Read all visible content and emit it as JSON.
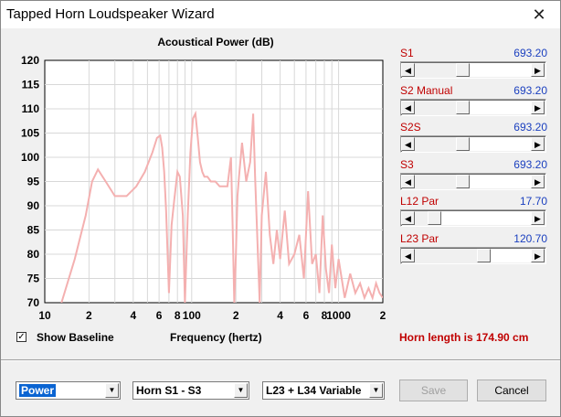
{
  "window": {
    "title": "Tapped Horn Loudspeaker Wizard",
    "close_glyph": "✕"
  },
  "chart_data": {
    "type": "line",
    "title": "Acoustical Power (dB)",
    "xlabel": "Frequency (hertz)",
    "ylabel": "",
    "x_scale": "log",
    "xlim": [
      10,
      2000
    ],
    "ylim": [
      70,
      120
    ],
    "y_ticks": [
      "120",
      "115",
      "110",
      "105",
      "100",
      "95",
      "90",
      "85",
      "80",
      "75",
      "70"
    ],
    "x_ticks": [
      {
        "value": 10,
        "label": "10"
      },
      {
        "value": 20,
        "label": "2"
      },
      {
        "value": 40,
        "label": "4"
      },
      {
        "value": 60,
        "label": "6"
      },
      {
        "value": 80,
        "label": "8"
      },
      {
        "value": 100,
        "label": "100"
      },
      {
        "value": 200,
        "label": "2"
      },
      {
        "value": 400,
        "label": "4"
      },
      {
        "value": 600,
        "label": "6"
      },
      {
        "value": 800,
        "label": "8"
      },
      {
        "value": 1000,
        "label": "1000"
      },
      {
        "value": 2000,
        "label": "2"
      }
    ],
    "grid": true,
    "series": [
      {
        "color": "#f4b0b0",
        "x": [
          13,
          16,
          19,
          21,
          23,
          26,
          30,
          36,
          42,
          48,
          54,
          58,
          61,
          63,
          65,
          67,
          70,
          73,
          76,
          78,
          80,
          83,
          87,
          90,
          94,
          98,
          102,
          106,
          110,
          114,
          118,
          122,
          128,
          135,
          145,
          155,
          165,
          175,
          185,
          190,
          195,
          200,
          205,
          210,
          220,
          235,
          250,
          262,
          270,
          280,
          290,
          300,
          320,
          340,
          360,
          380,
          400,
          430,
          460,
          500,
          540,
          580,
          620,
          660,
          700,
          740,
          780,
          820,
          860,
          900,
          950,
          1000,
          1100,
          1200,
          1300,
          1400,
          1500,
          1600,
          1700,
          1800,
          1900,
          2000
        ],
        "y": [
          70,
          79,
          88,
          95,
          97.5,
          95,
          92,
          92,
          94,
          97,
          101,
          104,
          104.5,
          102,
          97,
          89,
          72,
          86,
          91,
          94,
          97,
          96,
          88,
          70,
          88,
          101,
          108,
          109,
          104,
          99,
          97,
          96,
          96,
          95,
          95,
          94,
          94,
          94,
          100,
          86,
          70,
          80,
          92,
          96,
          103,
          95,
          99,
          109,
          96,
          83,
          70,
          88,
          97,
          84,
          78,
          85,
          79,
          89,
          78,
          80,
          84,
          75,
          93,
          78,
          80,
          72,
          88,
          77,
          72,
          82,
          73,
          79,
          71,
          76,
          72,
          74,
          71,
          73,
          71,
          74,
          72,
          71
        ]
      }
    ]
  },
  "sliders": [
    {
      "label": "S1",
      "value": "693.20",
      "level": 0.4
    },
    {
      "label": "S2  Manual",
      "value": "693.20",
      "level": 0.4
    },
    {
      "label": "S2S",
      "value": "693.20",
      "level": 0.4
    },
    {
      "label": "S3",
      "value": "693.20",
      "level": 0.4
    },
    {
      "label": "L12  Par",
      "value": "17.70",
      "level": 0.12
    },
    {
      "label": "L23  Par",
      "value": "120.70",
      "level": 0.6
    }
  ],
  "slider_arrows": {
    "left": "◀",
    "right": "▶"
  },
  "options": {
    "show_baseline_label": "Show Baseline",
    "show_baseline_checked": "✓"
  },
  "status": {
    "horn_length": "Horn length is 174.90 cm"
  },
  "bottom": {
    "combo_output": "Power",
    "combo_range": "Horn S1 - S3",
    "combo_variable": "L23 + L34 Variable",
    "combo_arrow": "▼",
    "save_label": "Save",
    "cancel_label": "Cancel"
  }
}
